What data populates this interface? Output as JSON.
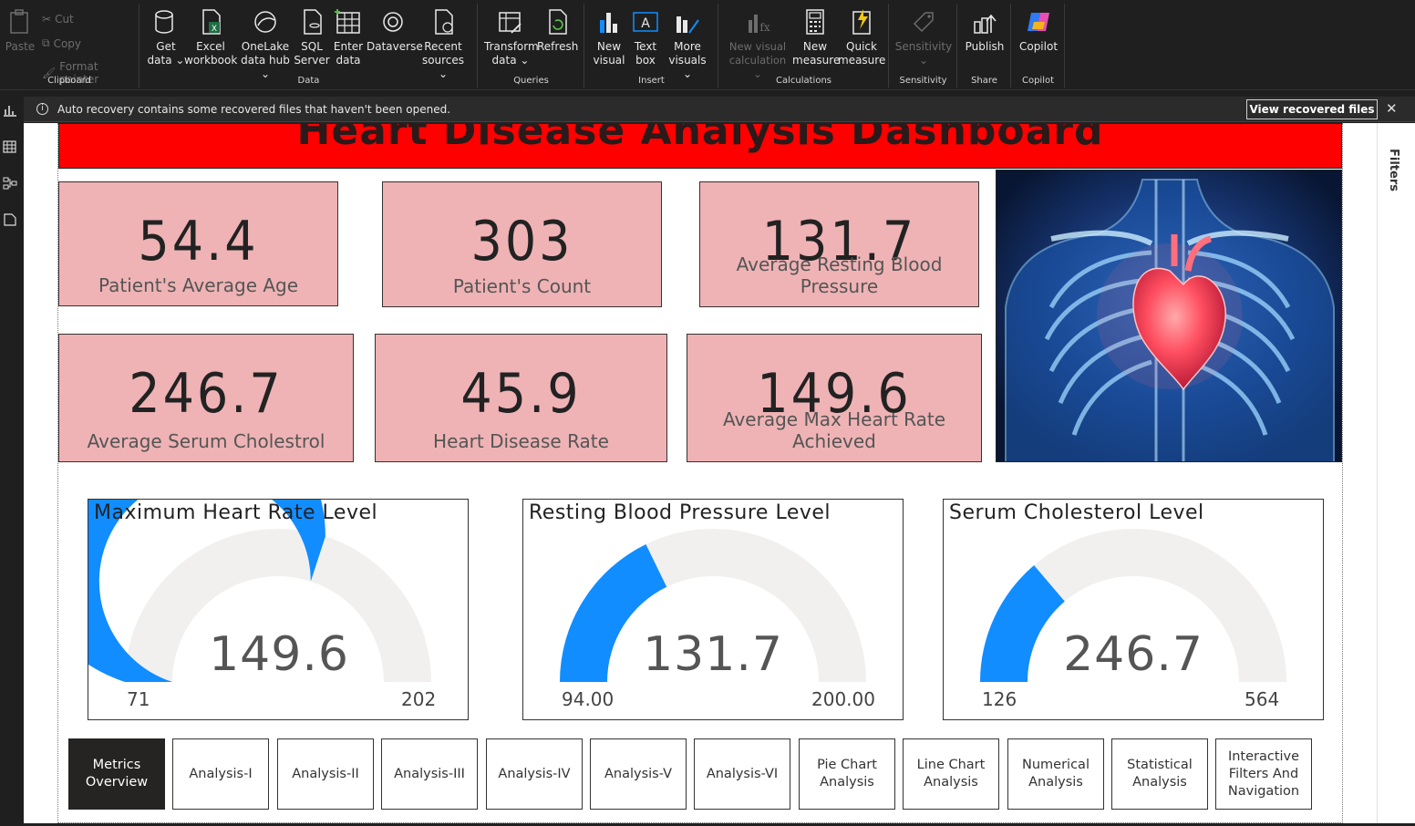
{
  "ribbon": {
    "clipboard": {
      "label": "Clipboard",
      "paste": "Paste",
      "cut": "Cut",
      "copy": "Copy",
      "format_painter": "Format painter"
    },
    "data": {
      "label": "Data",
      "get_data": [
        "Get",
        "data ⌄"
      ],
      "excel": [
        "Excel",
        "workbook"
      ],
      "onelake": [
        "OneLake",
        "data hub ⌄"
      ],
      "sql": [
        "SQL",
        "Server"
      ],
      "enter": [
        "Enter",
        "data"
      ],
      "dataverse": "Dataverse",
      "recent": [
        "Recent",
        "sources ⌄"
      ]
    },
    "queries": {
      "label": "Queries",
      "transform": [
        "Transform",
        "data ⌄"
      ],
      "refresh": "Refresh"
    },
    "insert": {
      "label": "Insert",
      "new_visual": [
        "New",
        "visual"
      ],
      "text_box": [
        "Text",
        "box"
      ],
      "more_visuals": [
        "More",
        "visuals ⌄"
      ]
    },
    "calculations": {
      "label": "Calculations",
      "new_visual_calc": [
        "New visual",
        "calculation ⌄"
      ],
      "new_measure": [
        "New",
        "measure"
      ],
      "quick_measure": [
        "Quick",
        "measure"
      ]
    },
    "sensitivity": {
      "label": "Sensitivity",
      "btn": [
        "Sensitivity",
        "⌄"
      ]
    },
    "share": {
      "label": "Share",
      "publish": "Publish"
    },
    "copilot": {
      "label": "Copilot",
      "btn": "Copilot"
    }
  },
  "notification": {
    "message": "Auto recovery contains some recovered files that haven't been opened.",
    "button": "View recovered files",
    "close": "✕"
  },
  "filters_pane": {
    "label": "Filters"
  },
  "dashboard": {
    "title": "Heart Disease Analysis Dashboard",
    "kpis": [
      {
        "value": "54.4",
        "label": "Patient's Average Age"
      },
      {
        "value": "303",
        "label": "Patient's Count"
      },
      {
        "value": "131.7",
        "label": "Average Resting Blood Pressure"
      },
      {
        "value": "246.7",
        "label": "Average Serum Cholestrol"
      },
      {
        "value": "45.9",
        "label": "Heart Disease Rate"
      },
      {
        "value": "149.6",
        "label": "Average Max Heart Rate Achieved"
      }
    ],
    "gauges": [
      {
        "title": "Maximum Heart Rate Level",
        "value": 149.6,
        "value_label": "149.6",
        "min": 71,
        "max": 202,
        "min_label": "71",
        "max_label": "202"
      },
      {
        "title": "Resting Blood Pressure Level",
        "value": 131.7,
        "value_label": "131.7",
        "min": 94,
        "max": 200,
        "min_label": "94.00",
        "max_label": "200.00"
      },
      {
        "title": "Serum Cholesterol Level",
        "value": 246.7,
        "value_label": "246.7",
        "min": 126,
        "max": 564,
        "min_label": "126",
        "max_label": "564"
      }
    ],
    "nav": [
      {
        "label": "Metrics Overview",
        "active": true
      },
      {
        "label": "Analysis-I"
      },
      {
        "label": "Analysis-II"
      },
      {
        "label": "Analysis-III"
      },
      {
        "label": "Analysis-IV"
      },
      {
        "label": "Analysis-V"
      },
      {
        "label": "Analysis-VI"
      },
      {
        "label": "Pie Chart Analysis"
      },
      {
        "label": "Line Chart Analysis"
      },
      {
        "label": "Numerical Analysis"
      },
      {
        "label": "Statistical Analysis"
      },
      {
        "label": "Interactive Filters And Navigation"
      }
    ]
  },
  "colors": {
    "title_bg": "#ff0000",
    "kpi_bg": "#efb3b5",
    "gauge_fill": "#118dff",
    "gauge_track": "#f1f0ef",
    "nav_active": "#252423"
  }
}
